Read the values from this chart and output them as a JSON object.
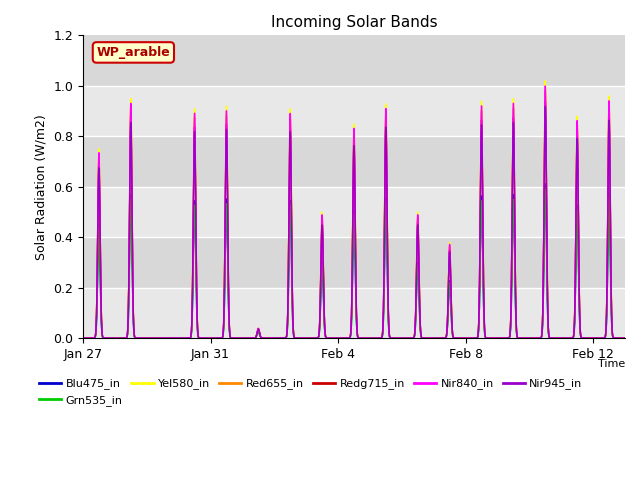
{
  "title": "Incoming Solar Bands",
  "xlabel": "Time",
  "ylabel": "Solar Radiation (W/m2)",
  "ylim": [
    0,
    1.2
  ],
  "annotation": "WP_arable",
  "annotation_textcolor": "#aa0000",
  "series": [
    {
      "label": "Blu475_in",
      "color": "#0000cc",
      "lw": 1.0
    },
    {
      "label": "Grn535_in",
      "color": "#00cc00",
      "lw": 1.0
    },
    {
      "label": "Yel580_in",
      "color": "#ffff00",
      "lw": 1.0
    },
    {
      "label": "Red655_in",
      "color": "#ff8800",
      "lw": 1.0
    },
    {
      "label": "Redg715_in",
      "color": "#cc0000",
      "lw": 1.0
    },
    {
      "label": "Nir840_in",
      "color": "#ff00ff",
      "lw": 1.0
    },
    {
      "label": "Nir945_in",
      "color": "#9900cc",
      "lw": 1.0
    }
  ],
  "xtick_labels": [
    "Jan 27",
    "Jan 31",
    "Feb 4",
    "Feb 8",
    "Feb 12"
  ],
  "xtick_positions": [
    0,
    4,
    8,
    12,
    16
  ],
  "band_colors": [
    "#e8e8e8",
    "#d8d8d8"
  ],
  "band_edges": [
    0.0,
    0.2,
    0.4,
    0.6,
    0.8,
    1.0,
    1.2
  ],
  "figsize": [
    6.4,
    4.8
  ],
  "dpi": 100,
  "day_peaks": [
    0.75,
    0.95,
    0.0,
    0.91,
    0.92,
    0.04,
    0.91,
    0.5,
    0.85,
    0.93,
    0.5,
    0.38,
    0.94,
    0.95,
    1.02,
    0.88,
    0.96
  ],
  "scales": {
    "Blu475_in": 0.6,
    "Grn535_in": 0.58,
    "Yel580_in": 1.0,
    "Red655_in": 0.96,
    "Redg715_in": 0.92,
    "Nir840_in": 0.98,
    "Nir945_in": 0.9
  }
}
